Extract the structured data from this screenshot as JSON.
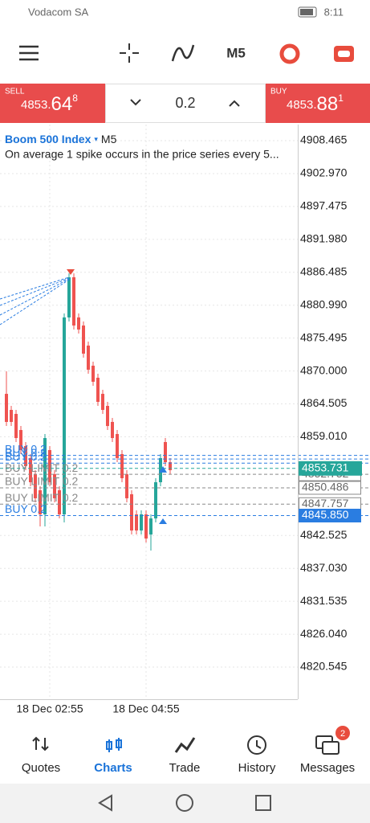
{
  "status_bar": {
    "carrier": "Vodacom SA",
    "time": "8:11"
  },
  "toolbar": {
    "timeframe": "M5"
  },
  "trade_bar": {
    "sell": {
      "label": "SELL",
      "price_main": "4853.",
      "price_big": "64",
      "price_sup": "8"
    },
    "volume": "0.2",
    "buy": {
      "label": "BUY",
      "price_main": "4853.",
      "price_big": "88",
      "price_sup": "1"
    }
  },
  "chart_data": {
    "type": "candlestick",
    "title": "Boom 500 Index",
    "timeframe": "M5",
    "subtitle": "On average 1 spike occurs in the price series every 5...",
    "categories": [
      null,
      null,
      null,
      null,
      null,
      null,
      null,
      null,
      null,
      "18 Dec 02:55",
      null,
      null,
      null,
      null,
      null,
      null,
      null,
      null,
      null,
      null,
      null,
      null,
      null,
      null,
      null,
      null,
      null,
      null,
      null,
      "18 Dec 04:55",
      null,
      null,
      null,
      null,
      null
    ],
    "open": [
      4866.18,
      4863.5,
      4862.83,
      4860.14,
      4857.46,
      4855.45,
      4852.76,
      4850.08,
      4846.05,
      4856.79,
      4852.76,
      4850.08,
      4846.05,
      4878.94,
      4885.65,
      4878.94,
      4877.59,
      4874.24,
      4870.88,
      4868.87,
      4866.18,
      4864.17,
      4861.49,
      4859.47,
      4856.12,
      4852.76,
      4849.41,
      4846.05,
      4843.36,
      4846.05,
      4842.69,
      4845.38,
      4851.42,
      4858.13,
      4854.77
    ],
    "high": [
      4869.94,
      4864.17,
      4863.5,
      4860.81,
      4858.13,
      4856.12,
      4853.43,
      4850.75,
      4859.47,
      4857.46,
      4853.43,
      4850.75,
      4879.61,
      4886.3,
      4886.3,
      4879.61,
      4878.27,
      4874.91,
      4871.55,
      4869.54,
      4866.85,
      4864.84,
      4862.16,
      4860.14,
      4856.79,
      4853.43,
      4850.08,
      4846.72,
      4846.72,
      4846.72,
      4846.05,
      4852.09,
      4856.12,
      4858.8,
      4855.45
    ],
    "low": [
      4860.81,
      4860.81,
      4858.13,
      4856.12,
      4853.43,
      4850.75,
      4848.07,
      4844.04,
      4844.04,
      4850.75,
      4848.07,
      4845.38,
      4844.71,
      4878.27,
      4876.92,
      4876.25,
      4872.22,
      4869.54,
      4867.53,
      4864.17,
      4862.83,
      4860.14,
      4858.13,
      4854.77,
      4851.42,
      4848.07,
      4842.69,
      4842.69,
      4842.69,
      4841.35,
      4840.01,
      4844.71,
      4850.75,
      4854.1,
      4852.76
    ],
    "close": [
      4861.49,
      4861.49,
      4858.8,
      4856.79,
      4854.1,
      4851.42,
      4848.74,
      4846.05,
      4858.8,
      4851.42,
      4848.74,
      4846.05,
      4878.94,
      4885.65,
      4877.59,
      4876.92,
      4872.89,
      4870.21,
      4868.2,
      4864.84,
      4863.5,
      4860.81,
      4858.8,
      4855.45,
      4852.09,
      4848.74,
      4843.36,
      4843.36,
      4846.05,
      4842.02,
      4845.38,
      4851.42,
      4855.45,
      4854.77,
      4853.43
    ],
    "up_color": "#26a69a",
    "down_color": "#ef5350",
    "ylim": [
      4815.18,
      4911.15
    ],
    "yticks": [
      4908.465,
      {
        "value": 4902.97,
        "label": "4902.970"
      },
      4897.475,
      {
        "value": 4891.98,
        "label": "4891.980"
      },
      4886.485,
      {
        "value": 4880.99,
        "label": "4880.990"
      },
      4875.495,
      {
        "value": 4870,
        "label": "4870.000"
      },
      4864.505,
      {
        "value": 4859.01,
        "label": "4859.010"
      },
      4842.525,
      {
        "value": 4837.03,
        "label": "4837.030"
      },
      4831.535,
      {
        "value": 4826.04,
        "label": "4826.040"
      },
      4820.545
    ],
    "grid": true,
    "current_price": 4853.731,
    "current_color": "#26a69a",
    "order_lines": [
      {
        "label": "BUY 0.2",
        "price": 4855.9,
        "color": "#2a7de1",
        "labeled": false
      },
      {
        "label": "BUY 0.2",
        "price": 4855.3,
        "color": "#2a7de1",
        "labeled": false
      },
      {
        "label": "BUY 0.2",
        "price": 4854.6,
        "color": "#2a7de1",
        "labeled": false
      },
      {
        "label": "BUY LIMIT 0.2",
        "price": 4852.752,
        "color": "#8a8a8a",
        "labeled": true
      },
      {
        "label": "BUY LIMIT 0.2",
        "price": 4850.486,
        "color": "#8a8a8a",
        "labeled": true
      },
      {
        "label": "BUY LIMIT 0.2",
        "price": 4847.757,
        "color": "#8a8a8a",
        "labeled": true
      },
      {
        "label": "BUY 0.2",
        "price": 4845.85,
        "price_label": "4845.850",
        "color": "#2a7de1",
        "labeled": true
      }
    ]
  },
  "nav": {
    "items": [
      "Quotes",
      "Charts",
      "Trade",
      "History",
      "Messages"
    ],
    "active": 1,
    "messages_badge": 2
  }
}
